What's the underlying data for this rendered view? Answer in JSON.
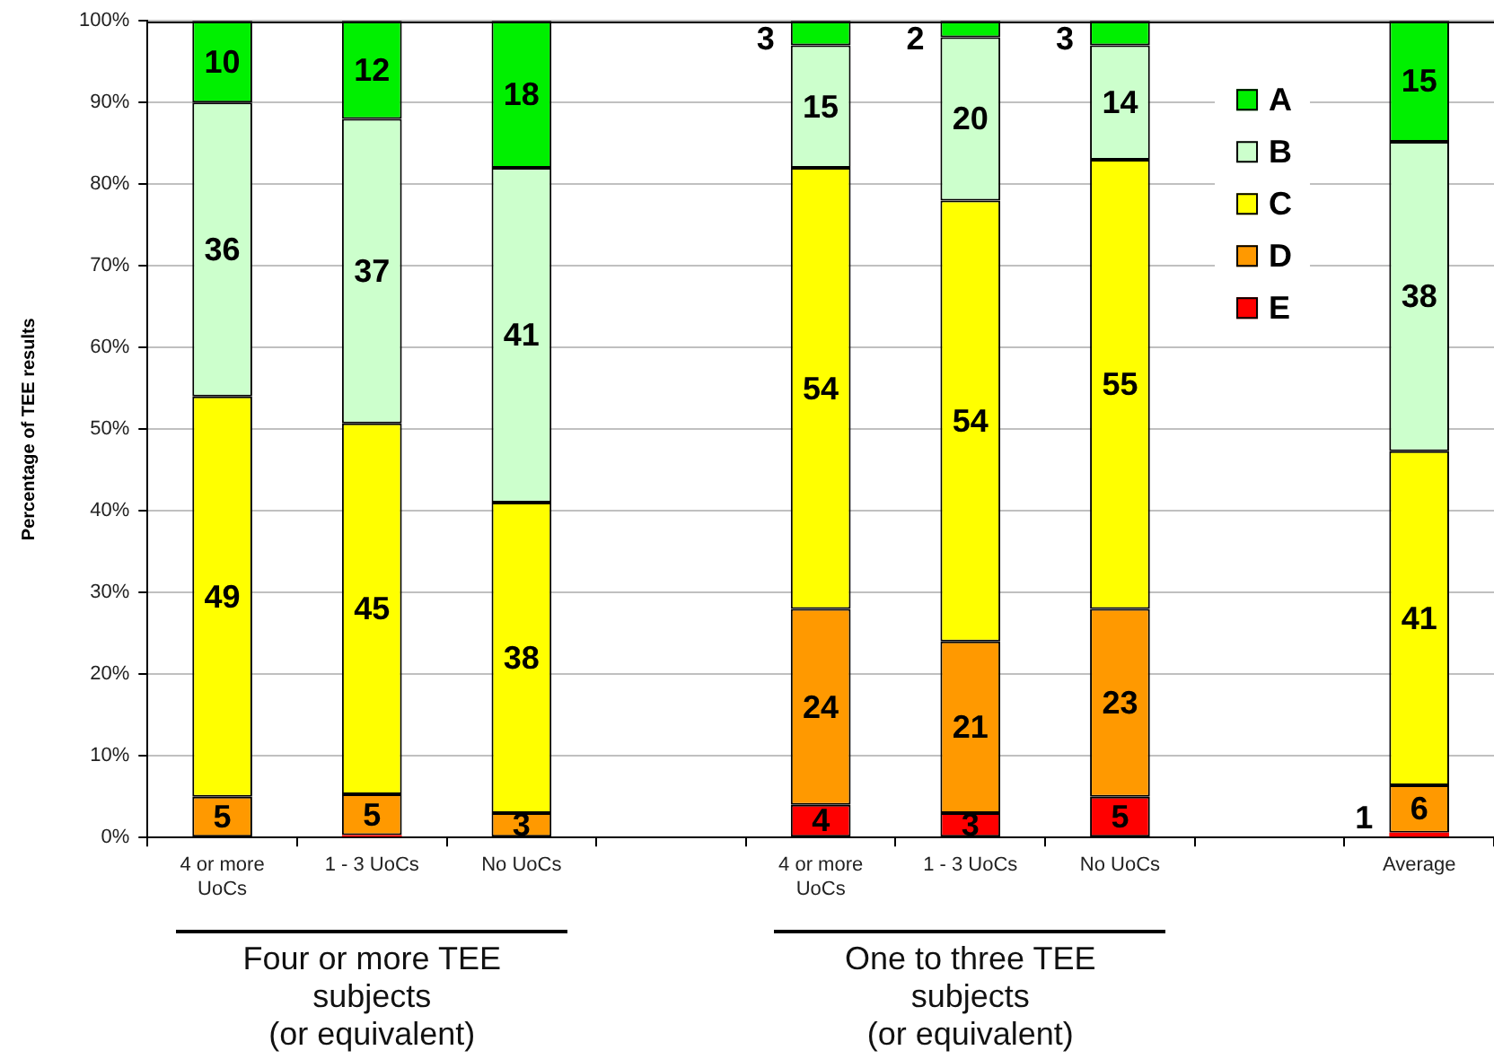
{
  "chart_data": {
    "type": "bar",
    "stacked": true,
    "categories": [
      "4 or more UoCs",
      "1 - 3 UoCs",
      "No UoCs",
      null,
      "4 or more UoCs",
      "1 - 3 UoCs",
      "No UoCs",
      null,
      "Average"
    ],
    "series": [
      {
        "name": "E",
        "color": "#ff0000",
        "values": [
          null,
          0.3,
          null,
          null,
          4,
          3,
          5,
          null,
          0.6
        ],
        "value_labels": [
          null,
          null,
          null,
          null,
          "4",
          "3",
          "5",
          null,
          "1"
        ]
      },
      {
        "name": "D",
        "color": "#ff9900",
        "values": [
          5,
          5,
          3,
          null,
          24,
          21,
          23,
          null,
          5.8
        ],
        "value_labels": [
          "5",
          "5",
          "3",
          null,
          "24",
          "21",
          "23",
          null,
          "6"
        ]
      },
      {
        "name": "C",
        "color": "#ffff00",
        "values": [
          49,
          45.4,
          38,
          null,
          54,
          54,
          55,
          null,
          40.9
        ],
        "value_labels": [
          "49",
          "45",
          "38",
          null,
          "54",
          "54",
          "55",
          null,
          "41"
        ]
      },
      {
        "name": "B",
        "color": "#ccffcc",
        "values": [
          36,
          37.3,
          41,
          null,
          15,
          20,
          14,
          null,
          37.9
        ],
        "value_labels": [
          "36",
          "37",
          "41",
          null,
          "15",
          "20",
          "14",
          null,
          "38"
        ]
      },
      {
        "name": "A",
        "color": "#00f000",
        "values": [
          10,
          12,
          18,
          null,
          3,
          2,
          3,
          null,
          14.8
        ],
        "value_labels": [
          "10",
          "12",
          "18",
          null,
          "3",
          "2",
          "3",
          null,
          "15"
        ]
      }
    ],
    "ylabel": "Percentage of TEE results",
    "ylim": [
      0,
      100
    ],
    "yticks": [
      {
        "value": 0,
        "label": "0%"
      },
      {
        "value": 10,
        "label": "10%"
      },
      {
        "value": 20,
        "label": "20%"
      },
      {
        "value": 30,
        "label": "30%"
      },
      {
        "value": 40,
        "label": "40%"
      },
      {
        "value": 50,
        "label": "50%"
      },
      {
        "value": 60,
        "label": "60%"
      },
      {
        "value": 70,
        "label": "70%"
      },
      {
        "value": 80,
        "label": "80%"
      },
      {
        "value": 90,
        "label": "90%"
      },
      {
        "value": 100,
        "label": "100%"
      }
    ],
    "grid": "y",
    "legend": "top right",
    "annotations": [
      "Four or more TEE subjects (or equivalent)",
      "One to three TEE subjects (or equivalent)"
    ]
  }
}
